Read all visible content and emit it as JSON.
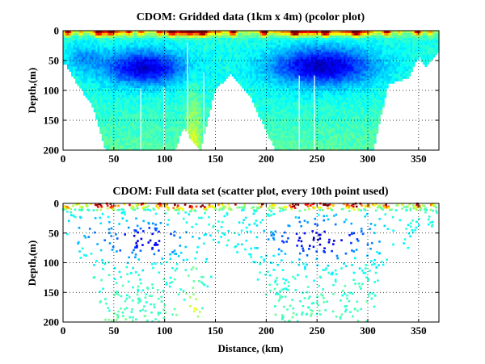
{
  "chart_data": [
    {
      "type": "heatmap",
      "title": "CDOM: Gridded data (1km x 4m) (pcolor plot)",
      "xlabel": "",
      "ylabel": "Depth,(m)",
      "xlim": [
        0,
        370
      ],
      "ylim": [
        200,
        0
      ],
      "xticks": [
        "0",
        "50",
        "100",
        "150",
        "200",
        "250",
        "300",
        "350"
      ],
      "yticks": [
        "0",
        "50",
        "100",
        "150",
        "200"
      ],
      "grid": true,
      "colormap": "jet",
      "bins": {
        "distance_km": 1,
        "depth_m": 4
      }
    },
    {
      "type": "scatter",
      "title": "CDOM: Full data set (scatter plot, every 10th point used)",
      "xlabel": "Distance, (km)",
      "ylabel": "Depth,(m)",
      "xlim": [
        0,
        370
      ],
      "ylim": [
        200,
        0
      ],
      "xticks": [
        "0",
        "50",
        "100",
        "150",
        "200",
        "250",
        "300",
        "350"
      ],
      "yticks": [
        "0",
        "50",
        "100",
        "150",
        "200"
      ],
      "grid": true,
      "colormap": "jet",
      "sampling": "every 10th point"
    }
  ]
}
